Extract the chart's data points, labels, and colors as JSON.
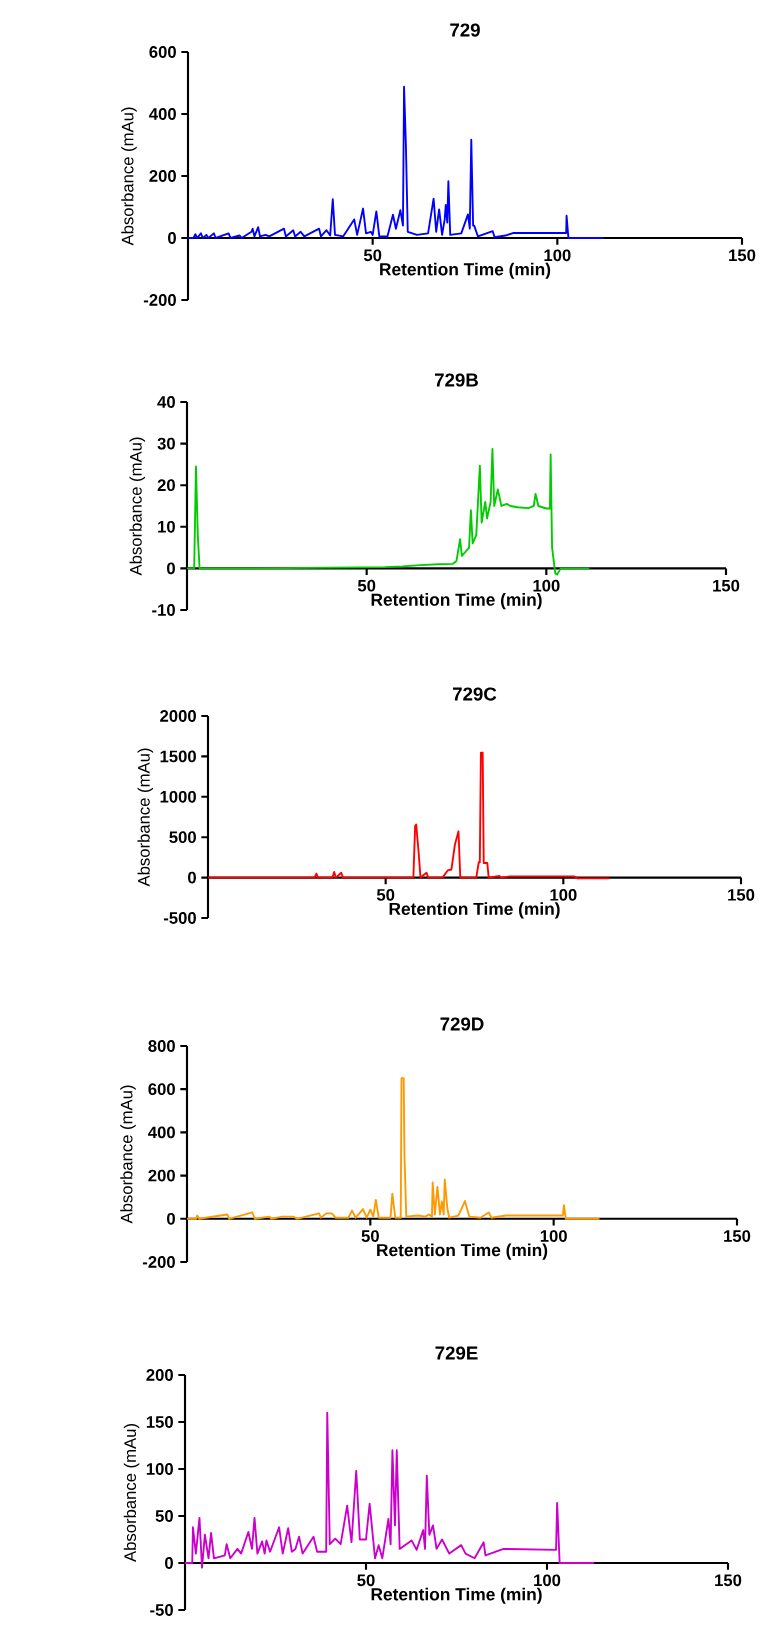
{
  "chart_data": [
    {
      "type": "line",
      "title": "729",
      "xlabel": "Retention Time (min)",
      "ylabel": "Absorbance (mAu)",
      "color": "#0000ff",
      "xlim": [
        0,
        150
      ],
      "xticks": [
        50,
        100,
        150
      ],
      "ylim": [
        -200,
        600
      ],
      "yticks": [
        -200,
        0,
        200,
        400,
        600
      ],
      "x": [
        0,
        1.5,
        2,
        2.5,
        3.5,
        4,
        5,
        5.5,
        7,
        7.5,
        11,
        11.5,
        14,
        14.5,
        17.2,
        17.5,
        18,
        19,
        19.5,
        21,
        22,
        26,
        26.5,
        28.5,
        29,
        30.5,
        31.5,
        35.5,
        36,
        37.5,
        38.5,
        39.2,
        39.8,
        42,
        45,
        45.8,
        47.4,
        48.2,
        49.5,
        50,
        51,
        51.8,
        54,
        55.5,
        56.3,
        57.5,
        58.2,
        58.5,
        59,
        59.5,
        62,
        65,
        66.5,
        67.2,
        68,
        68.8,
        69.5,
        69.8,
        70.2,
        70.5,
        71,
        74,
        75.8,
        76.3,
        76.7,
        77.2,
        77.5,
        78.5,
        82.5,
        83,
        86,
        88,
        101,
        102.4,
        102.5,
        103,
        112.5
      ],
      "values": [
        0,
        0,
        12,
        0,
        15,
        0,
        10,
        0,
        15,
        0,
        15,
        0,
        8,
        0,
        20,
        30,
        5,
        35,
        5,
        10,
        5,
        30,
        5,
        25,
        5,
        20,
        5,
        30,
        5,
        25,
        8,
        125,
        10,
        5,
        60,
        10,
        95,
        15,
        20,
        10,
        86,
        5,
        5,
        75,
        30,
        90,
        40,
        488,
        300,
        20,
        10,
        15,
        127,
        20,
        92,
        10,
        60,
        107,
        50,
        183,
        10,
        15,
        76,
        30,
        317,
        40,
        40,
        5,
        22,
        3,
        8,
        16,
        16,
        16,
        72,
        0,
        0
      ]
    },
    {
      "type": "line",
      "title": "729B",
      "xlabel": "Retention Time (min)",
      "ylabel": "Absorbance (mAu)",
      "color": "#00cc00",
      "xlim": [
        0,
        150
      ],
      "xticks": [
        50,
        100,
        150
      ],
      "ylim": [
        -10,
        40
      ],
      "yticks": [
        -10,
        0,
        10,
        20,
        30,
        40
      ],
      "x": [
        0,
        2,
        2.5,
        3,
        3.5,
        20,
        40,
        55,
        60,
        65,
        70,
        74,
        75,
        76,
        76.5,
        77.5,
        78.5,
        79,
        79.5,
        80.5,
        81.5,
        82,
        83,
        83.5,
        84.5,
        85,
        85.5,
        86.5,
        87.5,
        89,
        90,
        92,
        95,
        96.5,
        97,
        97.8,
        100,
        101,
        101.2,
        101.6,
        102.5,
        103,
        104,
        112
      ],
      "values": [
        0,
        0,
        24.5,
        8,
        0,
        0,
        0.2,
        0.3,
        0.5,
        0.8,
        1,
        1.1,
        1.8,
        7,
        3,
        4,
        5,
        14,
        6,
        8,
        24.7,
        11,
        16,
        12,
        16,
        28.7,
        15,
        19,
        15,
        15.5,
        15,
        14.7,
        14.5,
        15,
        17.9,
        15,
        14.4,
        14.4,
        27.4,
        5,
        -1.2,
        -1.5,
        0,
        0
      ]
    },
    {
      "type": "line",
      "title": "729C",
      "xlabel": "Retention Time (min)",
      "ylabel": "Absorbance (mAu)",
      "color": "#ff0000",
      "xlim": [
        0,
        150
      ],
      "xticks": [
        50,
        100,
        150
      ],
      "ylim": [
        -500,
        2000
      ],
      "yticks": [
        -500,
        0,
        500,
        1000,
        1500,
        2000
      ],
      "x": [
        0,
        30,
        30.5,
        31,
        35,
        35.5,
        36,
        37.5,
        38,
        57.8,
        58.3,
        58.6,
        59.3,
        59.8,
        61.5,
        62,
        66,
        67.5,
        68.5,
        69.3,
        69.5,
        70.5,
        71,
        75.5,
        76.2,
        76.5,
        76.8,
        77.3,
        77.6,
        78.6,
        79,
        82,
        82.5,
        85,
        103,
        104,
        113
      ],
      "values": [
        0,
        0,
        50,
        0,
        0,
        70,
        0,
        60,
        0,
        0,
        640,
        657,
        300,
        0,
        60,
        0,
        0,
        90,
        100,
        350,
        410,
        573,
        0,
        0,
        190,
        190,
        1547,
        1547,
        180,
        180,
        0,
        20,
        0,
        15,
        15,
        -10,
        -10
      ]
    },
    {
      "type": "line",
      "title": "729D",
      "xlabel": "Retention Time (min)",
      "ylabel": "Absorbance (mAu)",
      "color": "#ff9900",
      "xlim": [
        0,
        150
      ],
      "xticks": [
        50,
        100,
        150
      ],
      "ylim": [
        -200,
        800
      ],
      "yticks": [
        -200,
        0,
        200,
        400,
        600,
        800
      ],
      "x": [
        0,
        2.5,
        2.8,
        3.3,
        11,
        11.5,
        17.8,
        18.5,
        22.5,
        23,
        26,
        29,
        30,
        36,
        36.5,
        38,
        39.5,
        40.5,
        44,
        45,
        46,
        48,
        49,
        50,
        50.8,
        51.5,
        52.3,
        55.5,
        56,
        56.8,
        58.3,
        58.5,
        59.1,
        59.3,
        59.8,
        63,
        65,
        66,
        66.8,
        67,
        67.6,
        68.3,
        69,
        69.5,
        70,
        70.3,
        71,
        71.5,
        74,
        75.8,
        77,
        80,
        82.3,
        83,
        87,
        102.5,
        102.8,
        103.3,
        112.5
      ],
      "values": [
        0,
        0,
        15,
        0,
        20,
        0,
        30,
        0,
        10,
        0,
        10,
        10,
        0,
        25,
        5,
        25,
        25,
        5,
        5,
        38,
        5,
        45,
        5,
        42,
        10,
        87,
        5,
        5,
        116,
        5,
        5,
        651,
        651,
        300,
        10,
        15,
        10,
        20,
        10,
        168,
        20,
        148,
        20,
        80,
        20,
        182,
        50,
        5,
        15,
        82,
        10,
        5,
        29,
        5,
        15,
        15,
        63,
        0,
        0
      ]
    },
    {
      "type": "line",
      "title": "729E",
      "xlabel": "Retention Time (min)",
      "ylabel": "Absorbance (mAu)",
      "color": "#cc00cc",
      "xlim": [
        0,
        150
      ],
      "xticks": [
        50,
        100,
        150
      ],
      "ylim": [
        -50,
        200
      ],
      "yticks": [
        -50,
        0,
        50,
        100,
        150,
        200
      ],
      "x": [
        0,
        2,
        2.2,
        3,
        4,
        4.7,
        5.5,
        6.5,
        7.2,
        8,
        11,
        11.5,
        12.5,
        14.5,
        15.5,
        17.5,
        18.5,
        19.2,
        20,
        21.3,
        22,
        22.5,
        23.5,
        26,
        27,
        28.5,
        29.5,
        30.5,
        31.5,
        32.5,
        35.5,
        36.5,
        39,
        39.3,
        40,
        41.5,
        43,
        44.8,
        46,
        47.3,
        48.3,
        50,
        51,
        52.5,
        53.5,
        54.5,
        56.2,
        56.8,
        57.3,
        58,
        58.5,
        59.3,
        62.6,
        64,
        65.8,
        66.3,
        66.8,
        67.5,
        68.5,
        69.5,
        71,
        73,
        76.3,
        77.5,
        80,
        82.5,
        83,
        88,
        102.5,
        102.8,
        103.5,
        113
      ],
      "values": [
        0,
        0,
        38,
        10,
        48,
        -5,
        30,
        5,
        32,
        5,
        8,
        20,
        5,
        15,
        10,
        33,
        15,
        48,
        10,
        23,
        10,
        24,
        12,
        38,
        10,
        37,
        12,
        15,
        28,
        10,
        28,
        12,
        12,
        160,
        20,
        26,
        20,
        61,
        22,
        98,
        25,
        25,
        63,
        5,
        19,
        5,
        47,
        20,
        120,
        40,
        120,
        15,
        24,
        14,
        35,
        15,
        93,
        30,
        40,
        15,
        25,
        10,
        19,
        10,
        5,
        22,
        8,
        15,
        14,
        64,
        0,
        0
      ]
    }
  ]
}
